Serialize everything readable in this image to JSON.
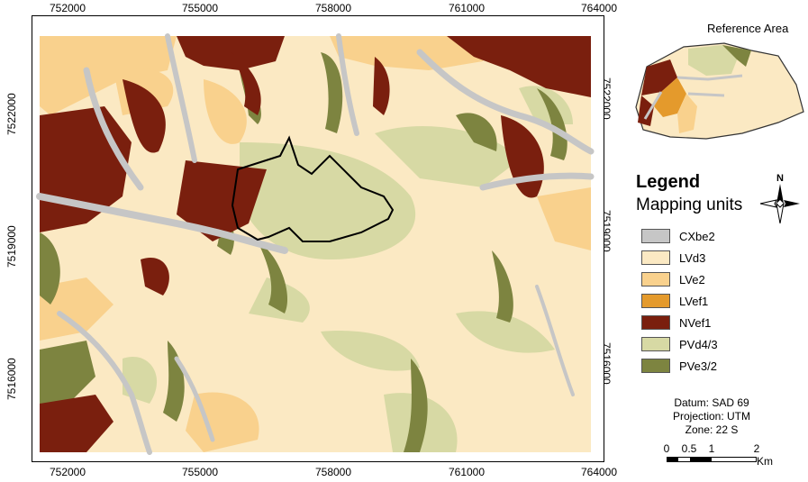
{
  "map": {
    "x_ticks": [
      "752000",
      "755000",
      "758000",
      "761000",
      "764000"
    ],
    "y_ticks": [
      "7522000",
      "7519000",
      "7516000"
    ],
    "colors": {
      "CXbe2": "#c6c6c6",
      "LVd3": "#fbe9c3",
      "LVe2": "#f9d18d",
      "LVef1": "#e49a2c",
      "NVef1": "#7a1f0e",
      "PVd4/3": "#d7d9a4",
      "PVe3/2": "#7d8440"
    }
  },
  "reference": {
    "title": "Reference Area"
  },
  "legend": {
    "title": "Legend",
    "subtitle": "Mapping units",
    "items": [
      {
        "label": "CXbe2",
        "color": "#c6c6c6"
      },
      {
        "label": "LVd3",
        "color": "#fbe9c3"
      },
      {
        "label": "LVe2",
        "color": "#f9d18d"
      },
      {
        "label": "LVef1",
        "color": "#e49a2c"
      },
      {
        "label": "NVef1",
        "color": "#7a1f0e"
      },
      {
        "label": "PVd4/3",
        "color": "#d7d9a4"
      },
      {
        "label": "PVe3/2",
        "color": "#7d8440"
      }
    ]
  },
  "north": {
    "letter": "N"
  },
  "info": {
    "datum": "Datum: SAD 69",
    "projection": "Projection: UTM",
    "zone": "Zone: 22 S"
  },
  "scalebar": {
    "labels": [
      "0",
      "0.5",
      "1",
      "2"
    ],
    "unit": "Km"
  }
}
